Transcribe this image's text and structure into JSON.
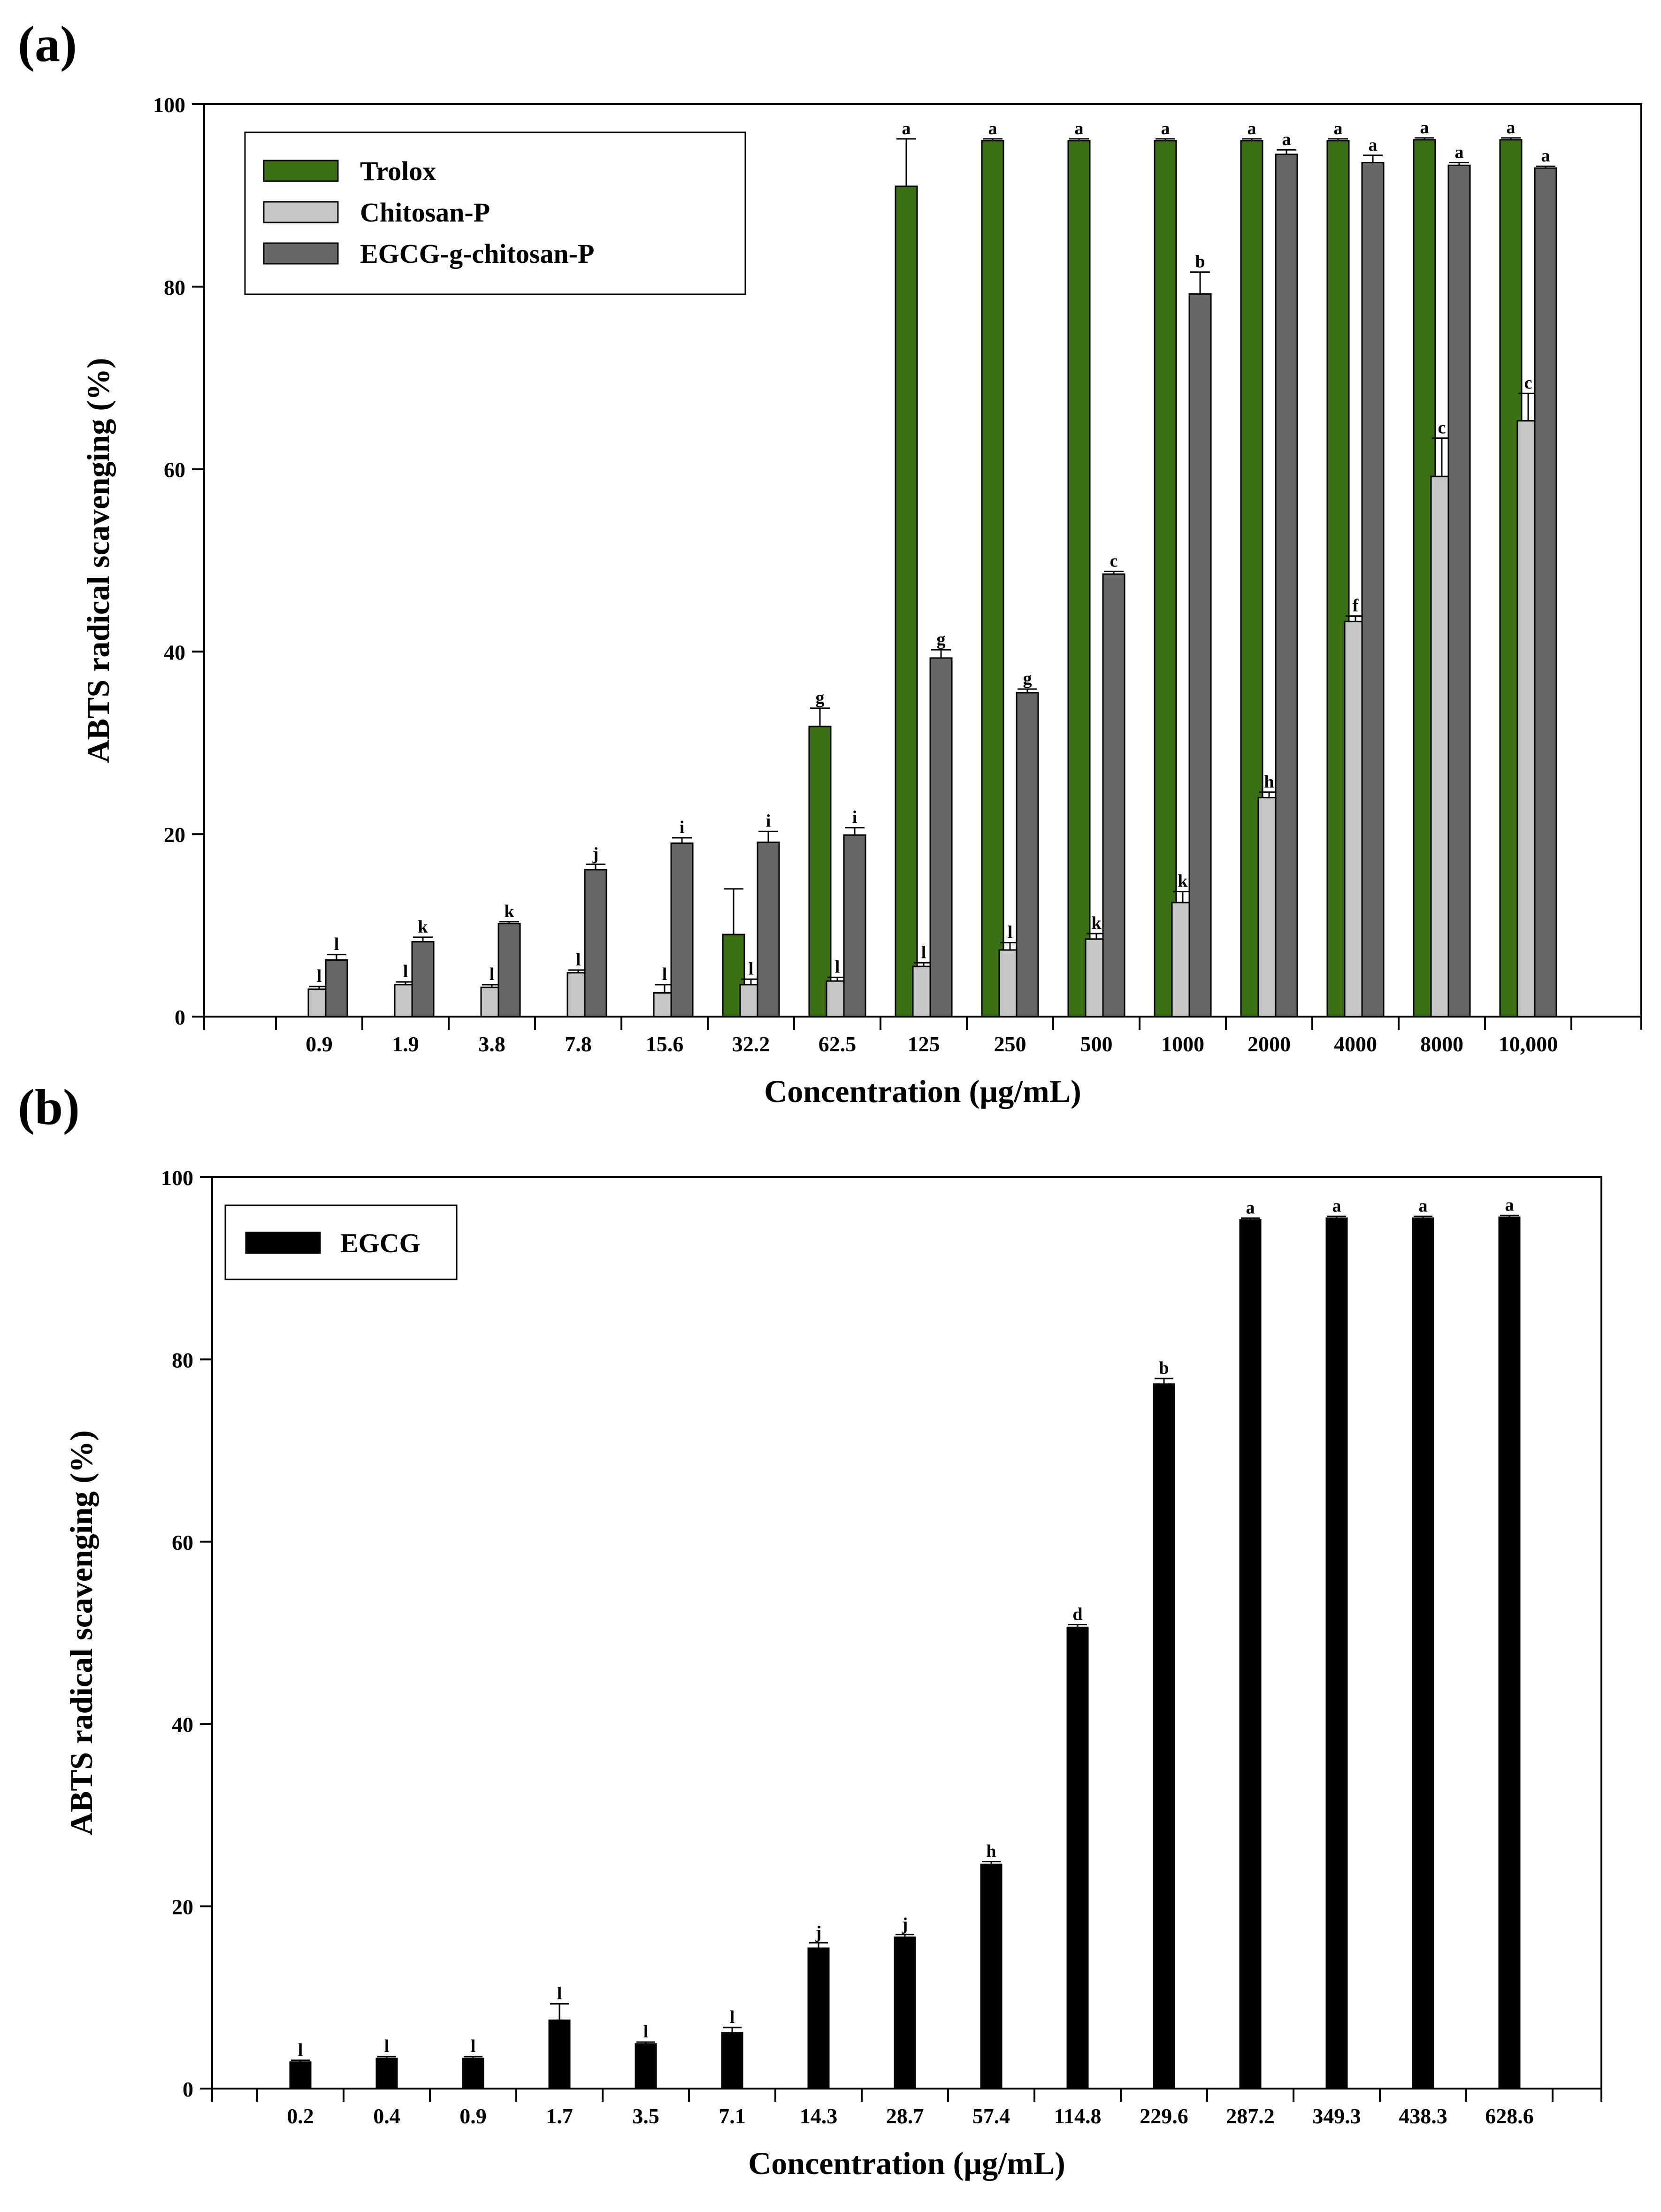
{
  "chart_data": [
    {
      "type": "bar",
      "panel_label": "(a)",
      "title": "",
      "xlabel": "Concentration (µg/mL)",
      "ylabel": "ABTS radical scavenging (%)",
      "ylim": [
        0,
        100
      ],
      "yticks": [
        "0",
        "20",
        "40",
        "60",
        "80",
        "100"
      ],
      "legend_position": "top-left",
      "categories": [
        "0.9",
        "1.9",
        "3.8",
        "7.8",
        "15.6",
        "32.2",
        "62.5",
        "125",
        "250",
        "500",
        "1000",
        "2000",
        "4000",
        "8000",
        "10,000"
      ],
      "series": [
        {
          "name": "Trolox",
          "color": "#3a7012",
          "values": [
            null,
            null,
            null,
            null,
            null,
            9.0,
            31.8,
            91.0,
            96.0,
            96.0,
            96.0,
            96.0,
            96.0,
            96.1,
            96.1
          ],
          "errors": [
            null,
            null,
            null,
            null,
            null,
            5.0,
            2.0,
            5.2,
            0.2,
            0.2,
            0.2,
            0.2,
            0.2,
            0.2,
            0.2
          ],
          "letters": [
            "",
            "",
            "",
            "",
            "",
            "",
            "g",
            "a",
            "a",
            "a",
            "a",
            "a",
            "a",
            "a",
            "a"
          ]
        },
        {
          "name": "Chitosan-P",
          "color": "#c6c6c6",
          "values": [
            3.0,
            3.5,
            3.2,
            4.8,
            2.6,
            3.5,
            3.9,
            5.5,
            7.3,
            8.5,
            12.5,
            24.0,
            43.3,
            59.2,
            65.3
          ],
          "errors": [
            0.3,
            0.3,
            0.3,
            0.3,
            0.9,
            0.6,
            0.4,
            0.4,
            0.8,
            0.6,
            1.2,
            0.6,
            0.6,
            4.2,
            3.0
          ],
          "letters": [
            "l",
            "l",
            "l",
            "l",
            "l",
            "l",
            "l",
            "l",
            "l",
            "k",
            "k",
            "h",
            "f",
            "c",
            "c"
          ]
        },
        {
          "name": "EGCG-g-chitosan-P",
          "color": "#666666",
          "values": [
            6.2,
            8.2,
            10.2,
            16.1,
            19.0,
            19.1,
            19.9,
            39.3,
            35.5,
            48.5,
            79.2,
            94.5,
            93.6,
            93.3,
            93.0
          ],
          "errors": [
            0.6,
            0.5,
            0.2,
            0.6,
            0.6,
            1.2,
            0.8,
            0.9,
            0.4,
            0.3,
            2.4,
            0.5,
            0.8,
            0.3,
            0.2
          ],
          "letters": [
            "l",
            "k",
            "k",
            "j",
            "i",
            "i",
            "i",
            "g",
            "g",
            "c",
            "b",
            "a",
            "a",
            "a",
            "a"
          ]
        }
      ]
    },
    {
      "type": "bar",
      "panel_label": "(b)",
      "title": "",
      "xlabel": "Concentration (µg/mL)",
      "ylabel": "ABTS radical scavenging (%)",
      "ylim": [
        0,
        100
      ],
      "yticks": [
        "0",
        "20",
        "40",
        "60",
        "80",
        "100"
      ],
      "legend_position": "top-left",
      "categories": [
        "0.2",
        "0.4",
        "0.9",
        "1.7",
        "3.5",
        "7.1",
        "14.3",
        "28.7",
        "57.4",
        "114.8",
        "229.6",
        "287.2",
        "349.3",
        "438.3",
        "628.6"
      ],
      "series": [
        {
          "name": "EGCG",
          "color": "#000000",
          "values": [
            2.9,
            3.3,
            3.3,
            7.5,
            4.9,
            6.1,
            15.4,
            16.6,
            24.6,
            50.6,
            77.3,
            95.3,
            95.5,
            95.5,
            95.6
          ],
          "errors": [
            0.2,
            0.2,
            0.2,
            1.8,
            0.2,
            0.6,
            0.6,
            0.3,
            0.3,
            0.3,
            0.6,
            0.2,
            0.2,
            0.2,
            0.2
          ],
          "letters": [
            "l",
            "l",
            "l",
            "l",
            "l",
            "l",
            "j",
            "j",
            "h",
            "d",
            "b",
            "a",
            "a",
            "a",
            "a"
          ]
        }
      ]
    }
  ]
}
